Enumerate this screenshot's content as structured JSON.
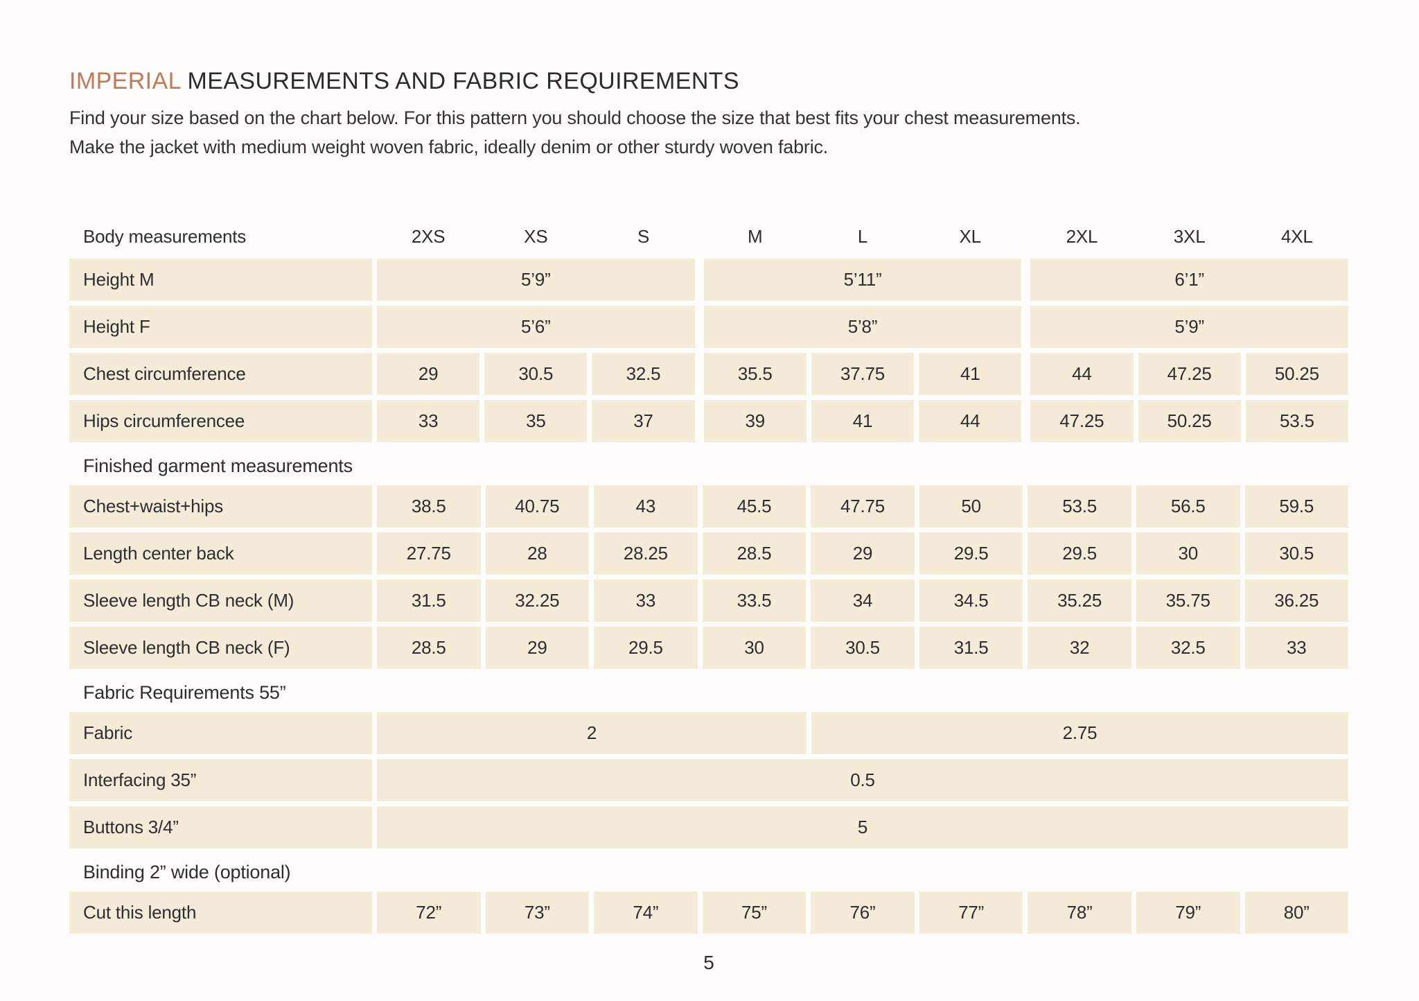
{
  "title": {
    "accent": "IMPERIAL",
    "rest": "MEASUREMENTS AND FABRIC REQUIREMENTS"
  },
  "intro": "Find your size based on the chart below. For this pattern you should choose the size that best fits your chest measurements. Make the jacket with medium weight woven fabric, ideally denim or other sturdy woven fabric.",
  "colors": {
    "accent": "#c1795a",
    "cell_bg": "#f4ebd9",
    "text": "#2e2e2e"
  },
  "table": {
    "header": {
      "label": "Body measurements",
      "sizes": [
        "2XS",
        "XS",
        "S",
        "M",
        "L",
        "XL",
        "2XL",
        "3XL",
        "4XL"
      ]
    },
    "sections": [
      {
        "grouped": true,
        "rows": [
          {
            "label": "Height M",
            "cells": [
              {
                "v": "5’9”",
                "span": 3
              },
              {
                "v": "5’11”",
                "span": 3
              },
              {
                "v": "6’1”",
                "span": 3
              }
            ]
          },
          {
            "label": "Height F",
            "cells": [
              {
                "v": "5’6”",
                "span": 3
              },
              {
                "v": "5’8”",
                "span": 3
              },
              {
                "v": "5’9”",
                "span": 3
              }
            ]
          },
          {
            "label": "Chest circumference",
            "cells": [
              "29",
              "30.5",
              "32.5",
              "35.5",
              "37.75",
              "41",
              "44",
              "47.25",
              "50.25"
            ]
          },
          {
            "label": "Hips circumferencee",
            "cells": [
              "33",
              "35",
              "37",
              "39",
              "41",
              "44",
              "47.25",
              "50.25",
              "53.5"
            ]
          }
        ]
      },
      {
        "heading": "Finished garment measurements",
        "rows": [
          {
            "label": "Chest+waist+hips",
            "cells": [
              "38.5",
              "40.75",
              "43",
              "45.5",
              "47.75",
              "50",
              "53.5",
              "56.5",
              "59.5"
            ]
          },
          {
            "label": "Length center back",
            "cells": [
              "27.75",
              "28",
              "28.25",
              "28.5",
              "29",
              "29.5",
              "29.5",
              "30",
              "30.5"
            ]
          },
          {
            "label": "Sleeve length CB neck (M)",
            "cells": [
              "31.5",
              "32.25",
              "33",
              "33.5",
              "34",
              "34.5",
              "35.25",
              "35.75",
              "36.25"
            ]
          },
          {
            "label": "Sleeve length CB neck (F)",
            "cells": [
              "28.5",
              "29",
              "29.5",
              "30",
              "30.5",
              "31.5",
              "32",
              "32.5",
              "33"
            ]
          }
        ]
      },
      {
        "heading": "Fabric Requirements 55”",
        "rows": [
          {
            "label": "Fabric",
            "cells": [
              {
                "v": "2",
                "span": 4
              },
              {
                "v": "2.75",
                "span": 5
              }
            ]
          },
          {
            "label": "Interfacing 35”",
            "cells": [
              {
                "v": "0.5",
                "span": 9
              }
            ]
          },
          {
            "label": "Buttons 3/4”",
            "cells": [
              {
                "v": "5",
                "span": 9
              }
            ]
          }
        ]
      },
      {
        "heading": "Binding 2” wide (optional)",
        "rows": [
          {
            "label": "Cut this length",
            "cells": [
              "72”",
              "73”",
              "74”",
              "75”",
              "76”",
              "77”",
              "78”",
              "79”",
              "80”"
            ]
          }
        ]
      }
    ]
  },
  "page_number": "5"
}
